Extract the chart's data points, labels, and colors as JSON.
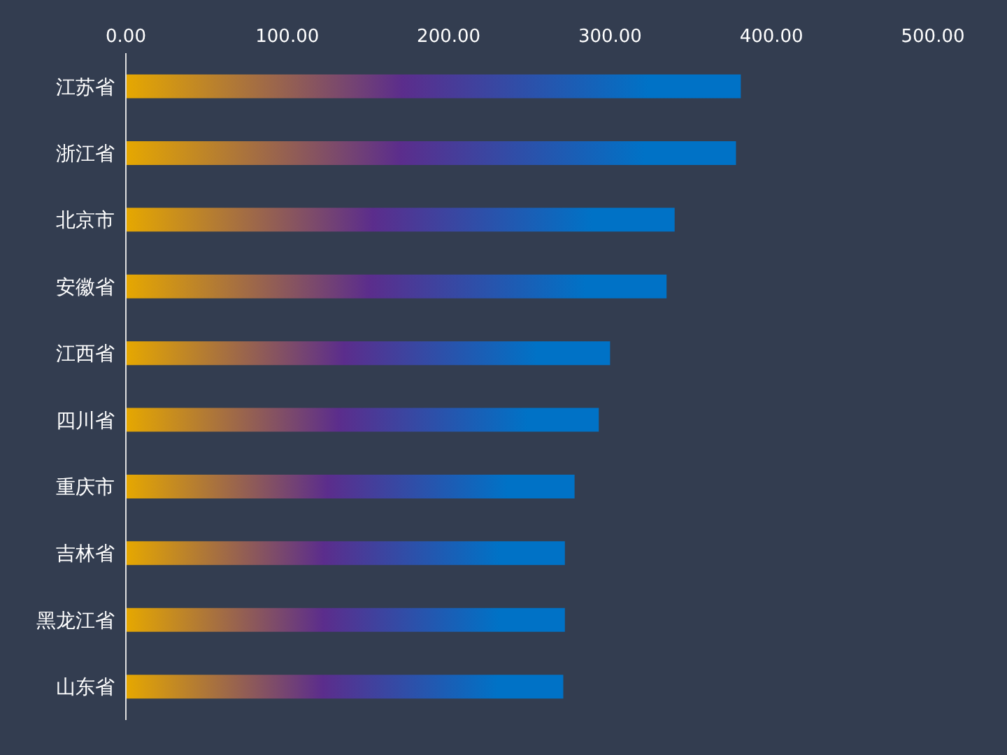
{
  "chart_data": {
    "type": "bar",
    "orientation": "horizontal",
    "categories": [
      "江苏省",
      "浙江省",
      "北京市",
      "安徽省",
      "江西省",
      "四川省",
      "重庆市",
      "吉林省",
      "黑龙江省",
      "山东省"
    ],
    "values": [
      381,
      378,
      340,
      335,
      300,
      293,
      278,
      272,
      272,
      271
    ],
    "color": "#0072c6",
    "xlim": [
      0,
      500
    ],
    "xticks": [
      {
        "value": 0,
        "label": "0.00"
      },
      {
        "value": 100,
        "label": "100.00"
      },
      {
        "value": 200,
        "label": "200.00"
      },
      {
        "value": 300,
        "label": "300.00"
      },
      {
        "value": 400,
        "label": "400.00"
      },
      {
        "value": 500,
        "label": "500.00"
      }
    ],
    "grid": false,
    "legend": false
  }
}
